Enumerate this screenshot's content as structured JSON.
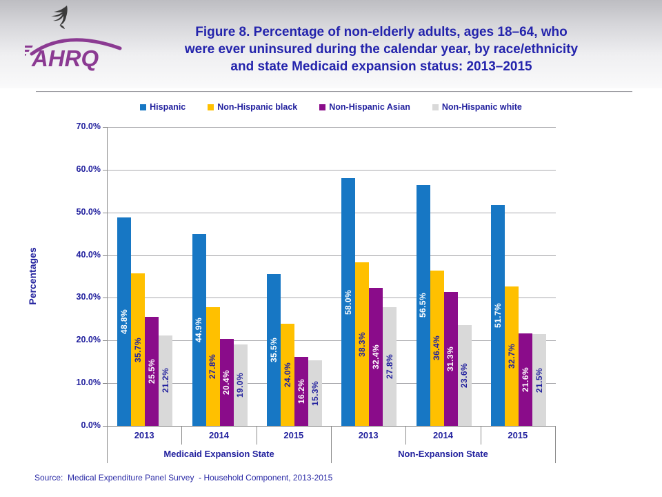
{
  "header": {
    "logo": "AHRQ",
    "title_lines": [
      "Figure 8. Percentage of non-elderly adults, ages 18–64, who",
      "were ever uninsured during the calendar year, by race/ethnicity",
      "and state Medicaid expansion status: 2013–2015"
    ]
  },
  "chart_data": {
    "type": "bar",
    "title": "Figure 8. Percentage of non-elderly adults, ages 18–64, who were ever uninsured during the calendar year, by race/ethnicity and state Medicaid expansion status: 2013–2015",
    "ylabel": "Percentages",
    "ylim": [
      0,
      70
    ],
    "ytick_interval": 10,
    "ytick_suffix": "%",
    "grid": true,
    "legend_position": "top",
    "group_labels": [
      "Medicaid Expansion State",
      "Non-Expansion State"
    ],
    "categories": [
      "2013",
      "2014",
      "2015",
      "2013",
      "2014",
      "2015"
    ],
    "series": [
      {
        "name": "Hispanic",
        "color": "#1777c4",
        "label_color": "#ffffff",
        "values": [
          48.8,
          44.9,
          35.5,
          58.0,
          56.5,
          51.7
        ]
      },
      {
        "name": "Non-Hispanic black",
        "color": "#ffc000",
        "label_color": "#22219e",
        "values": [
          35.7,
          27.8,
          24.0,
          38.3,
          36.4,
          32.7
        ]
      },
      {
        "name": "Non-Hispanic Asian",
        "color": "#8a0c8a",
        "label_color": "#ffffff",
        "values": [
          25.5,
          20.4,
          16.2,
          32.4,
          31.3,
          21.6
        ]
      },
      {
        "name": "Non-Hispanic white",
        "color": "#d9d9d9",
        "label_color": "#22219e",
        "values": [
          21.2,
          19.0,
          15.3,
          27.8,
          23.6,
          21.5
        ]
      }
    ]
  },
  "source": "Source:  Medical Expenditure Panel Survey  - Household Component, 2013-2015",
  "colors": {
    "text_navy": "#22219e",
    "grid_gray": "#a9a9ad",
    "axis_gray": "#8a8a8a",
    "logo_purple": "#8b3a92",
    "eagle_dark": "#3a3a3a"
  }
}
